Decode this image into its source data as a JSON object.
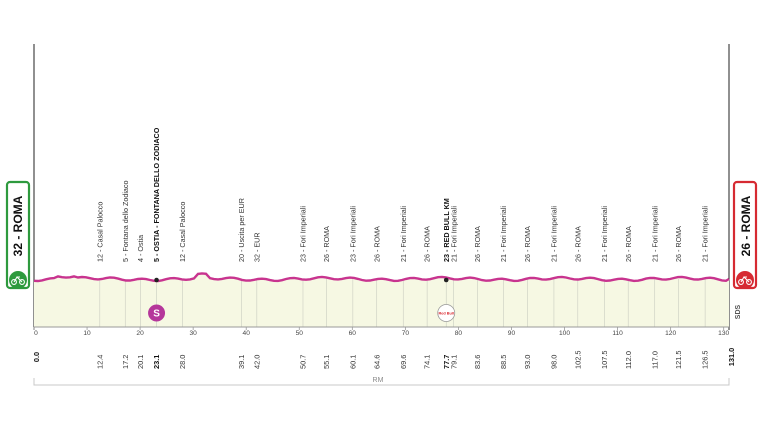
{
  "route": {
    "start": {
      "label": "32 - ROMA",
      "km": 0.0,
      "km_label": "0.0",
      "color": "#2e9a3e"
    },
    "finish": {
      "label": "26 - ROMA",
      "km": 131.0,
      "km_label": "131.0",
      "color": "#d62a32"
    },
    "total_km": 131,
    "line_color": "#c8348f",
    "fill_color": "#f6f8e3",
    "axis_ticks": [
      "0",
      "10",
      "20",
      "30",
      "40",
      "50",
      "60",
      "70",
      "80",
      "90",
      "100",
      "110",
      "120",
      "130"
    ],
    "zone_label": "RM",
    "sds_label": "SDS",
    "waypoints": [
      {
        "km": 12.4,
        "km_label": "12.4",
        "label": "12 - Casal Palocco",
        "strong": false
      },
      {
        "km": 17.2,
        "km_label": "17.2",
        "label": "5 - Fontana dello Zodiaco",
        "strong": false
      },
      {
        "km": 20.1,
        "km_label": "20.1",
        "label": "4 - Ostia",
        "strong": false
      },
      {
        "km": 23.1,
        "km_label": "23.1",
        "label": "5 - OSTIA - FONTANA DELLO ZODIACO",
        "strong": true,
        "marker": "sprint"
      },
      {
        "km": 28.0,
        "km_label": "28.0",
        "label": "12 - Casal Palocco",
        "strong": false
      },
      {
        "km": 39.1,
        "km_label": "39.1",
        "label": "20 - Uscita per EUR",
        "strong": false
      },
      {
        "km": 42.0,
        "km_label": "42.0",
        "label": "32 - EUR",
        "strong": false
      },
      {
        "km": 50.7,
        "km_label": "50.7",
        "label": "23 - Fori Imperiali",
        "strong": false
      },
      {
        "km": 55.1,
        "km_label": "55.1",
        "label": "26 - ROMA",
        "strong": false
      },
      {
        "km": 60.1,
        "km_label": "60.1",
        "label": "23 - Fori Imperiali",
        "strong": false
      },
      {
        "km": 64.6,
        "km_label": "64.6",
        "label": "26 - ROMA",
        "strong": false
      },
      {
        "km": 69.6,
        "km_label": "69.6",
        "label": "21 - Fori Imperiali",
        "strong": false
      },
      {
        "km": 74.1,
        "km_label": "74.1",
        "label": "26 - ROMA",
        "strong": false
      },
      {
        "km": 77.7,
        "km_label": "77.7",
        "label": "23 - RED BULL KM",
        "strong": true,
        "marker": "redbull"
      },
      {
        "km": 79.1,
        "km_label": "79.1",
        "label": "21 - Fori Imperiali",
        "strong": false
      },
      {
        "km": 83.6,
        "km_label": "83.6",
        "label": "26 - ROMA",
        "strong": false
      },
      {
        "km": 88.5,
        "km_label": "88.5",
        "label": "21 - Fori Imperiali",
        "strong": false
      },
      {
        "km": 93.0,
        "km_label": "93.0",
        "label": "26 - ROMA",
        "strong": false
      },
      {
        "km": 98.0,
        "km_label": "98.0",
        "label": "21 - Fori Imperiali",
        "strong": false
      },
      {
        "km": 102.5,
        "km_label": "102.5",
        "label": "26 - ROMA",
        "strong": false
      },
      {
        "km": 107.5,
        "km_label": "107.5",
        "label": "21 - Fori Imperiali",
        "strong": false
      },
      {
        "km": 112.0,
        "km_label": "112.0",
        "label": "26 - ROMA",
        "strong": false
      },
      {
        "km": 117.0,
        "km_label": "117.0",
        "label": "21 - Fori Imperiali",
        "strong": false
      },
      {
        "km": 121.5,
        "km_label": "121.5",
        "label": "26 - ROMA",
        "strong": false
      },
      {
        "km": 126.5,
        "km_label": "126.5",
        "label": "21 - Fori Imperiali",
        "strong": false
      }
    ],
    "sprint_marker": {
      "label": "S",
      "color": "#b5379b"
    },
    "redbull_marker": {
      "label": "Red Bull",
      "color": "#d8232a"
    }
  }
}
